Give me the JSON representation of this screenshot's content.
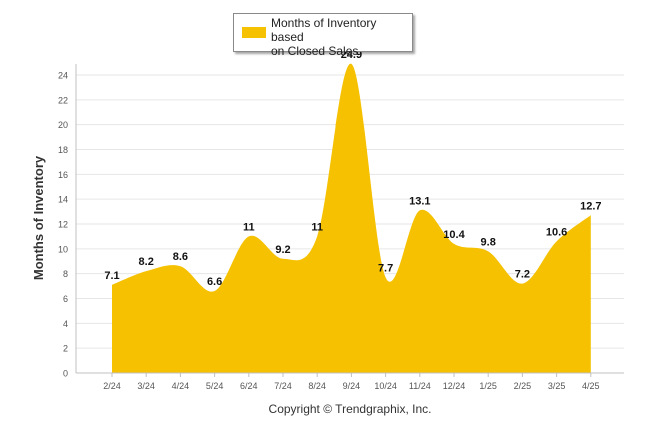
{
  "chart_data": {
    "type": "area",
    "categories": [
      "2/24",
      "3/24",
      "4/24",
      "5/24",
      "6/24",
      "7/24",
      "8/24",
      "9/24",
      "10/24",
      "11/24",
      "12/24",
      "1/25",
      "2/25",
      "3/25",
      "4/25"
    ],
    "series": [
      {
        "name": "Months of Inventory based on Closed Sales",
        "values": [
          7.1,
          8.2,
          8.6,
          6.6,
          11,
          9.2,
          11,
          24.9,
          7.7,
          13.1,
          10.4,
          9.8,
          7.2,
          10.6,
          12.7
        ],
        "data_labels": [
          "7.1",
          "8.2",
          "8.6",
          "6.6",
          "11",
          "9.2",
          "11",
          "24.9",
          "7.7",
          "13.1",
          "10.4",
          "9.8",
          "7.2",
          "10.6",
          "12.7"
        ]
      }
    ],
    "ylabel": "Months of Inventory",
    "ylim": [
      0,
      25
    ],
    "yticks": [
      0,
      2,
      4,
      6,
      8,
      10,
      12,
      14,
      16,
      18,
      20,
      22,
      24
    ],
    "grid": true,
    "legend_placement": "top-center",
    "colors": {
      "series": "#f5c100",
      "grid": "#e6e6e6",
      "axis": "#c0c0c0"
    }
  },
  "legend": {
    "line1": "Months of Inventory based",
    "line2": "on Closed Sales"
  },
  "footer": {
    "copyright": "Copyright © Trendgraphix, Inc."
  }
}
